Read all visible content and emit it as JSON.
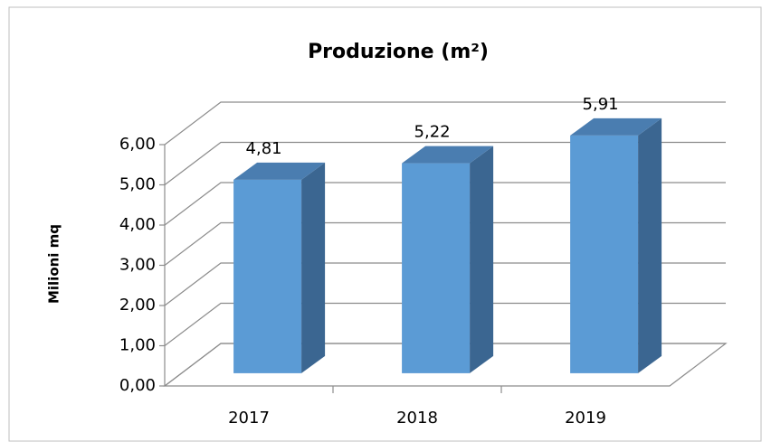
{
  "chart_data": {
    "type": "bar3d",
    "title": "Produzione (m²)",
    "y_label": "Milioni   mq",
    "categories": [
      "2017",
      "2018",
      "2019"
    ],
    "values": [
      4.81,
      5.22,
      5.91
    ],
    "value_labels": [
      "4,81",
      "5,22",
      "5,91"
    ],
    "color": "#5b9bd5",
    "ylim": [
      0,
      6
    ],
    "yticks": [
      {
        "value": 0,
        "label": "0,00"
      },
      {
        "value": 1,
        "label": "1,00"
      },
      {
        "value": 2,
        "label": "2,00"
      },
      {
        "value": 3,
        "label": "3,00"
      },
      {
        "value": 4,
        "label": "4,00"
      },
      {
        "value": 5,
        "label": "5,00"
      },
      {
        "value": 6,
        "label": "6,00"
      }
    ],
    "grid": true
  }
}
